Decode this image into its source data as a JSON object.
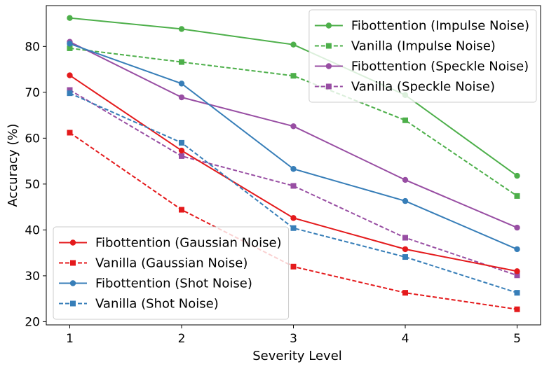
{
  "chart_data": {
    "type": "line",
    "title": "",
    "xlabel": "Severity Level",
    "ylabel": "Accuracy (%)",
    "x": [
      1,
      2,
      3,
      4,
      5
    ],
    "xlim": [
      0.79,
      5.21
    ],
    "ylim": [
      19.3,
      88.9
    ],
    "xticks": [
      1,
      2,
      3,
      4,
      5
    ],
    "yticks": [
      20,
      30,
      40,
      50,
      60,
      70,
      80
    ],
    "grid": false,
    "series": [
      {
        "name": "Fibottention (Impulse Noise)",
        "color": "#4daf4a",
        "style": "solid",
        "marker": "circle",
        "values": [
          86.2,
          83.8,
          80.4,
          69.4,
          51.8
        ]
      },
      {
        "name": "Vanilla (Impulse Noise)",
        "color": "#4daf4a",
        "style": "dashed",
        "marker": "square",
        "values": [
          79.6,
          76.6,
          73.6,
          63.9,
          47.4
        ]
      },
      {
        "name": "Fibottention (Speckle Noise)",
        "color": "#984ea3",
        "style": "solid",
        "marker": "circle",
        "values": [
          81.0,
          68.9,
          62.6,
          50.9,
          40.5
        ]
      },
      {
        "name": "Vanilla (Speckle Noise)",
        "color": "#984ea3",
        "style": "dashed",
        "marker": "square",
        "values": [
          70.5,
          56.1,
          49.6,
          38.3,
          30.1
        ]
      },
      {
        "name": "Fibottention (Gaussian Noise)",
        "color": "#e41a1c",
        "style": "solid",
        "marker": "circle",
        "values": [
          73.7,
          57.3,
          42.6,
          35.8,
          31.0
        ]
      },
      {
        "name": "Vanilla (Gaussian Noise)",
        "color": "#e41a1c",
        "style": "dashed",
        "marker": "square",
        "values": [
          61.2,
          44.4,
          32.0,
          26.3,
          22.7
        ]
      },
      {
        "name": "Fibottention (Shot Noise)",
        "color": "#377eb8",
        "style": "solid",
        "marker": "circle",
        "values": [
          80.6,
          71.9,
          53.3,
          46.3,
          35.8
        ]
      },
      {
        "name": "Vanilla (Shot Noise)",
        "color": "#377eb8",
        "style": "dashed",
        "marker": "square",
        "values": [
          69.8,
          59.0,
          40.4,
          34.1,
          26.3
        ]
      }
    ],
    "legends": [
      {
        "placement": "upper-right",
        "series": [
          0,
          1,
          2,
          3
        ]
      },
      {
        "placement": "lower-left",
        "series": [
          4,
          5,
          6,
          7
        ]
      }
    ]
  }
}
